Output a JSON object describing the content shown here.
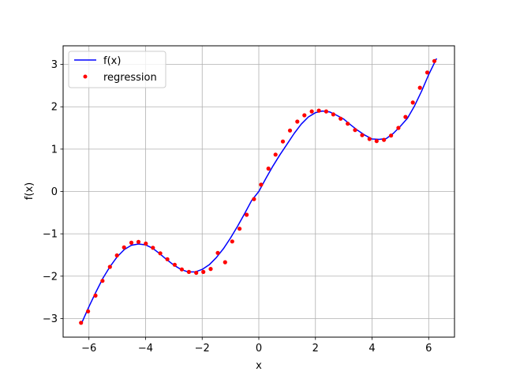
{
  "chart_data": {
    "type": "line",
    "title": "",
    "xlabel": "x",
    "ylabel": "f(x)",
    "xlim": [
      -6.912,
      6.912
    ],
    "ylim": [
      -3.44,
      3.44
    ],
    "xticks": [
      -6,
      -4,
      -2,
      0,
      2,
      4,
      6
    ],
    "yticks": [
      -3,
      -2,
      -1,
      0,
      1,
      2,
      3
    ],
    "grid": true,
    "legend_position": "upper-left",
    "series": [
      {
        "name": "f(x)",
        "kind": "line",
        "color": "#0000ff",
        "x": [
          -6.28,
          -6.0,
          -5.75,
          -5.5,
          -5.25,
          -5.0,
          -4.75,
          -4.5,
          -4.25,
          -4.0,
          -3.75,
          -3.5,
          -3.25,
          -3.0,
          -2.75,
          -2.5,
          -2.25,
          -2.0,
          -1.75,
          -1.5,
          -1.25,
          -1.0,
          -0.75,
          -0.5,
          -0.25,
          0.0,
          0.25,
          0.5,
          0.75,
          1.0,
          1.25,
          1.5,
          1.75,
          2.0,
          2.25,
          2.5,
          2.75,
          3.0,
          3.25,
          3.5,
          3.75,
          4.0,
          4.25,
          4.5,
          4.75,
          5.0,
          5.25,
          5.5,
          5.75,
          6.0,
          6.28
        ],
        "y": [
          -3.14,
          -2.72,
          -2.37,
          -2.04,
          -1.77,
          -1.54,
          -1.37,
          -1.27,
          -1.24,
          -1.26,
          -1.34,
          -1.47,
          -1.61,
          -1.74,
          -1.84,
          -1.9,
          -1.9,
          -1.84,
          -1.73,
          -1.56,
          -1.35,
          -1.1,
          -0.82,
          -0.52,
          -0.21,
          0.0,
          0.31,
          0.6,
          0.87,
          1.12,
          1.37,
          1.59,
          1.76,
          1.86,
          1.9,
          1.88,
          1.8,
          1.71,
          1.57,
          1.44,
          1.33,
          1.24,
          1.23,
          1.25,
          1.37,
          1.54,
          1.73,
          2.02,
          2.37,
          2.76,
          3.14
        ]
      },
      {
        "name": "regression",
        "kind": "scatter",
        "color": "#ff0000",
        "x": [
          -6.28,
          -6.03,
          -5.77,
          -5.52,
          -5.26,
          -5.01,
          -4.76,
          -4.5,
          -4.25,
          -3.99,
          -3.74,
          -3.48,
          -3.23,
          -2.97,
          -2.72,
          -2.47,
          -2.21,
          -1.96,
          -1.7,
          -1.45,
          -1.19,
          -0.94,
          -0.68,
          -0.43,
          -0.17,
          0.08,
          0.34,
          0.59,
          0.85,
          1.1,
          1.36,
          1.61,
          1.87,
          2.12,
          2.38,
          2.63,
          2.89,
          3.14,
          3.4,
          3.65,
          3.91,
          4.16,
          4.42,
          4.67,
          4.93,
          5.18,
          5.44,
          5.69,
          5.95,
          6.2
        ],
        "y": [
          -3.1,
          -2.83,
          -2.46,
          -2.11,
          -1.78,
          -1.51,
          -1.32,
          -1.21,
          -1.19,
          -1.23,
          -1.33,
          -1.46,
          -1.6,
          -1.73,
          -1.84,
          -1.9,
          -1.92,
          -1.9,
          -1.83,
          -1.45,
          -1.67,
          -1.18,
          -0.88,
          -0.55,
          -0.18,
          0.16,
          0.54,
          0.87,
          1.18,
          1.44,
          1.65,
          1.8,
          1.89,
          1.91,
          1.89,
          1.82,
          1.72,
          1.6,
          1.45,
          1.33,
          1.24,
          1.19,
          1.22,
          1.32,
          1.5,
          1.76,
          2.1,
          2.45,
          2.81,
          3.08
        ]
      }
    ]
  }
}
